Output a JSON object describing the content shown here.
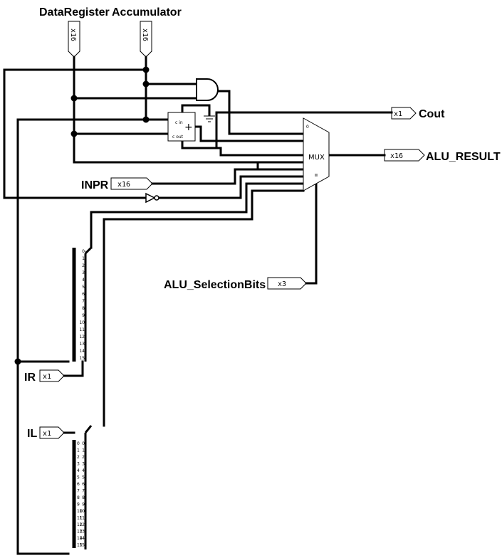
{
  "labels": {
    "data_register": "DataRegister",
    "accumulator": "Accumulator",
    "cout": "Cout",
    "alu_result": "ALU_RESULT",
    "inpr": "INPR",
    "alu_selection_bits": "ALU_SelectionBits",
    "ir": "IR",
    "il": "IL"
  },
  "widths": {
    "data_register": "x16",
    "accumulator": "x16",
    "cout": "x1",
    "alu_result": "x16",
    "inpr": "x16",
    "alu_selection_bits": "x3",
    "ir": "x1",
    "il": "x1"
  },
  "components": {
    "mux_label": "MUX",
    "mux_top_pin": "0",
    "adder_cin": "c in",
    "adder_cout": "c out",
    "adder_symbol": "+"
  },
  "splitter_rows_ir": [
    "0",
    "1",
    "2",
    "3",
    "4",
    "5",
    "6",
    "7",
    "8",
    "9",
    "10",
    "11",
    "12",
    "13",
    "14",
    "15"
  ],
  "splitter_rows_il": [
    "0",
    "1",
    "2",
    "3",
    "4",
    "5",
    "6",
    "7",
    "8",
    "9",
    "10",
    "11",
    "12",
    "13",
    "14",
    "15"
  ]
}
